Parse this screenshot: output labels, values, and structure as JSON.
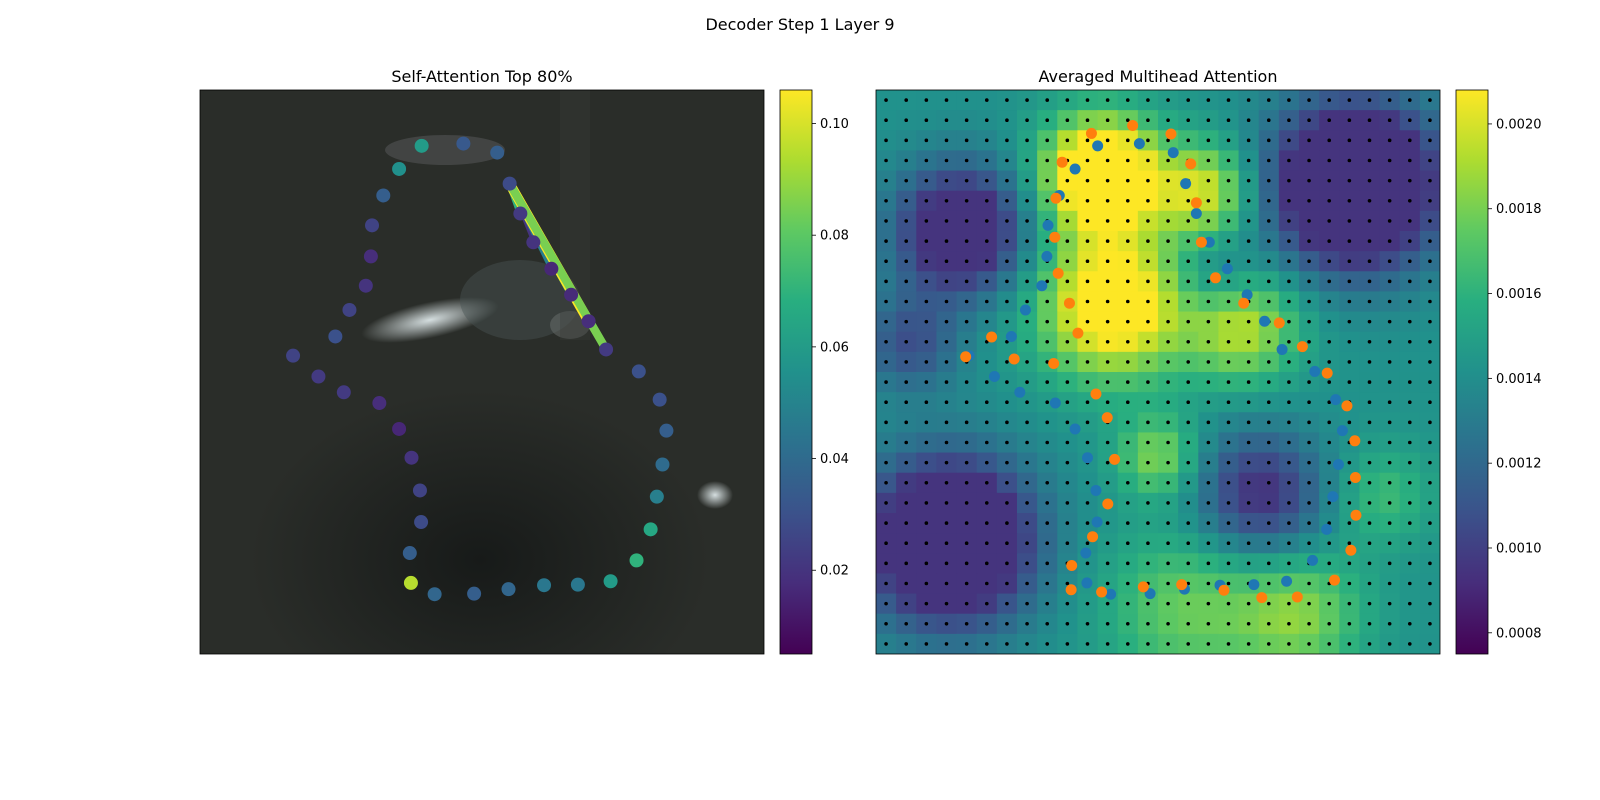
{
  "figure_title": "Decoder Step 1 Layer 9",
  "chart_data": [
    {
      "type": "scatter",
      "title": "Self-Attention Top 80%",
      "xlim": [
        0,
        1
      ],
      "ylim": [
        1,
        0
      ],
      "colormap": "viridis",
      "colorbar": {
        "range": [
          0.005,
          0.106
        ],
        "ticks": [
          0.02,
          0.04,
          0.06,
          0.08,
          0.1
        ],
        "tick_labels": [
          "0.02",
          "0.04",
          "0.06",
          "0.08",
          "0.10"
        ]
      },
      "query_point": 29,
      "attention_lines": [
        {
          "to": 27,
          "weight": 0.02
        },
        {
          "to": 28,
          "weight": 0.07
        },
        {
          "to": 26,
          "weight": 0.048
        },
        {
          "to": 25,
          "weight": 0.068
        },
        {
          "to": 24,
          "weight": 0.106
        },
        {
          "to": 23,
          "weight": 0.085
        }
      ],
      "points": [
        {
          "x": 0.165,
          "y": 0.471,
          "v": 0.025
        },
        {
          "x": 0.21,
          "y": 0.508,
          "v": 0.022
        },
        {
          "x": 0.255,
          "y": 0.536,
          "v": 0.022
        },
        {
          "x": 0.318,
          "y": 0.555,
          "v": 0.018
        },
        {
          "x": 0.353,
          "y": 0.601,
          "v": 0.016
        },
        {
          "x": 0.375,
          "y": 0.652,
          "v": 0.02
        },
        {
          "x": 0.39,
          "y": 0.71,
          "v": 0.025
        },
        {
          "x": 0.392,
          "y": 0.766,
          "v": 0.028
        },
        {
          "x": 0.372,
          "y": 0.821,
          "v": 0.035
        },
        {
          "x": 0.374,
          "y": 0.874,
          "v": 0.095
        },
        {
          "x": 0.416,
          "y": 0.894,
          "v": 0.038
        },
        {
          "x": 0.486,
          "y": 0.893,
          "v": 0.035
        },
        {
          "x": 0.547,
          "y": 0.885,
          "v": 0.038
        },
        {
          "x": 0.61,
          "y": 0.878,
          "v": 0.045
        },
        {
          "x": 0.67,
          "y": 0.877,
          "v": 0.045
        },
        {
          "x": 0.728,
          "y": 0.871,
          "v": 0.06
        },
        {
          "x": 0.774,
          "y": 0.834,
          "v": 0.07
        },
        {
          "x": 0.799,
          "y": 0.779,
          "v": 0.065
        },
        {
          "x": 0.81,
          "y": 0.721,
          "v": 0.048
        },
        {
          "x": 0.82,
          "y": 0.664,
          "v": 0.04
        },
        {
          "x": 0.827,
          "y": 0.604,
          "v": 0.035
        },
        {
          "x": 0.815,
          "y": 0.549,
          "v": 0.03
        },
        {
          "x": 0.778,
          "y": 0.499,
          "v": 0.03
        },
        {
          "x": 0.72,
          "y": 0.46,
          "v": 0.022
        },
        {
          "x": 0.689,
          "y": 0.41,
          "v": 0.018
        },
        {
          "x": 0.658,
          "y": 0.363,
          "v": 0.017
        },
        {
          "x": 0.623,
          "y": 0.317,
          "v": 0.016
        },
        {
          "x": 0.591,
          "y": 0.27,
          "v": 0.02
        },
        {
          "x": 0.568,
          "y": 0.219,
          "v": 0.022
        },
        {
          "x": 0.549,
          "y": 0.166,
          "v": 0.028
        },
        {
          "x": 0.527,
          "y": 0.111,
          "v": 0.035
        },
        {
          "x": 0.467,
          "y": 0.095,
          "v": 0.033
        },
        {
          "x": 0.393,
          "y": 0.099,
          "v": 0.06
        },
        {
          "x": 0.353,
          "y": 0.14,
          "v": 0.055
        },
        {
          "x": 0.325,
          "y": 0.187,
          "v": 0.035
        },
        {
          "x": 0.305,
          "y": 0.24,
          "v": 0.025
        },
        {
          "x": 0.303,
          "y": 0.295,
          "v": 0.018
        },
        {
          "x": 0.294,
          "y": 0.347,
          "v": 0.02
        },
        {
          "x": 0.265,
          "y": 0.39,
          "v": 0.025
        },
        {
          "x": 0.24,
          "y": 0.437,
          "v": 0.03
        }
      ]
    },
    {
      "type": "heatmap",
      "title": "Averaged Multihead Attention",
      "colormap": "viridis",
      "colorbar": {
        "range": [
          0.00075,
          0.00208
        ],
        "ticks": [
          0.0008,
          0.001,
          0.0012,
          0.0014,
          0.0016,
          0.0018,
          0.002
        ],
        "tick_labels": [
          "0.0008",
          "0.0010",
          "0.0012",
          "0.0014",
          "0.0016",
          "0.0018",
          "0.0020"
        ]
      },
      "grid_size": 28,
      "grid_dots": true,
      "series": [
        {
          "color": "#1f77b4",
          "points": [
            {
              "x": 0.165,
              "y": 0.471
            },
            {
              "x": 0.21,
              "y": 0.508
            },
            {
              "x": 0.255,
              "y": 0.536
            },
            {
              "x": 0.318,
              "y": 0.555
            },
            {
              "x": 0.353,
              "y": 0.601
            },
            {
              "x": 0.375,
              "y": 0.652
            },
            {
              "x": 0.39,
              "y": 0.71
            },
            {
              "x": 0.392,
              "y": 0.766
            },
            {
              "x": 0.372,
              "y": 0.821
            },
            {
              "x": 0.374,
              "y": 0.874
            },
            {
              "x": 0.416,
              "y": 0.894
            },
            {
              "x": 0.486,
              "y": 0.893
            },
            {
              "x": 0.547,
              "y": 0.885
            },
            {
              "x": 0.61,
              "y": 0.878
            },
            {
              "x": 0.67,
              "y": 0.877
            },
            {
              "x": 0.728,
              "y": 0.871
            },
            {
              "x": 0.774,
              "y": 0.834
            },
            {
              "x": 0.799,
              "y": 0.779
            },
            {
              "x": 0.81,
              "y": 0.721
            },
            {
              "x": 0.82,
              "y": 0.664
            },
            {
              "x": 0.827,
              "y": 0.604
            },
            {
              "x": 0.815,
              "y": 0.549
            },
            {
              "x": 0.778,
              "y": 0.499
            },
            {
              "x": 0.72,
              "y": 0.46
            },
            {
              "x": 0.689,
              "y": 0.41
            },
            {
              "x": 0.658,
              "y": 0.363
            },
            {
              "x": 0.623,
              "y": 0.317
            },
            {
              "x": 0.591,
              "y": 0.27
            },
            {
              "x": 0.568,
              "y": 0.219
            },
            {
              "x": 0.549,
              "y": 0.166
            },
            {
              "x": 0.527,
              "y": 0.111
            },
            {
              "x": 0.467,
              "y": 0.095
            },
            {
              "x": 0.393,
              "y": 0.099
            },
            {
              "x": 0.353,
              "y": 0.14
            },
            {
              "x": 0.325,
              "y": 0.187
            },
            {
              "x": 0.305,
              "y": 0.24
            },
            {
              "x": 0.303,
              "y": 0.295
            },
            {
              "x": 0.294,
              "y": 0.347
            },
            {
              "x": 0.265,
              "y": 0.39
            },
            {
              "x": 0.24,
              "y": 0.437
            }
          ]
        },
        {
          "color": "#ff7f0e",
          "points": [
            {
              "x": 0.159,
              "y": 0.473
            },
            {
              "x": 0.205,
              "y": 0.438
            },
            {
              "x": 0.245,
              "y": 0.477
            },
            {
              "x": 0.315,
              "y": 0.485
            },
            {
              "x": 0.39,
              "y": 0.539
            },
            {
              "x": 0.41,
              "y": 0.581
            },
            {
              "x": 0.423,
              "y": 0.655
            },
            {
              "x": 0.411,
              "y": 0.734
            },
            {
              "x": 0.384,
              "y": 0.792
            },
            {
              "x": 0.347,
              "y": 0.843
            },
            {
              "x": 0.346,
              "y": 0.886
            },
            {
              "x": 0.4,
              "y": 0.89
            },
            {
              "x": 0.474,
              "y": 0.881
            },
            {
              "x": 0.542,
              "y": 0.877
            },
            {
              "x": 0.617,
              "y": 0.887
            },
            {
              "x": 0.684,
              "y": 0.9
            },
            {
              "x": 0.747,
              "y": 0.899
            },
            {
              "x": 0.813,
              "y": 0.869
            },
            {
              "x": 0.842,
              "y": 0.816
            },
            {
              "x": 0.851,
              "y": 0.754
            },
            {
              "x": 0.85,
              "y": 0.687
            },
            {
              "x": 0.849,
              "y": 0.622
            },
            {
              "x": 0.835,
              "y": 0.56
            },
            {
              "x": 0.8,
              "y": 0.502
            },
            {
              "x": 0.756,
              "y": 0.455
            },
            {
              "x": 0.715,
              "y": 0.413
            },
            {
              "x": 0.652,
              "y": 0.378
            },
            {
              "x": 0.602,
              "y": 0.333
            },
            {
              "x": 0.577,
              "y": 0.27
            },
            {
              "x": 0.568,
              "y": 0.2
            },
            {
              "x": 0.558,
              "y": 0.131
            },
            {
              "x": 0.523,
              "y": 0.078
            },
            {
              "x": 0.455,
              "y": 0.063
            },
            {
              "x": 0.382,
              "y": 0.077
            },
            {
              "x": 0.33,
              "y": 0.128
            },
            {
              "x": 0.319,
              "y": 0.192
            },
            {
              "x": 0.317,
              "y": 0.261
            },
            {
              "x": 0.323,
              "y": 0.325
            },
            {
              "x": 0.343,
              "y": 0.378
            },
            {
              "x": 0.358,
              "y": 0.431
            }
          ]
        }
      ],
      "blobs": [
        {
          "x": 0.4,
          "y": 0.15,
          "s": 0.07,
          "a": 0.95
        },
        {
          "x": 0.42,
          "y": 0.38,
          "s": 0.09,
          "a": 0.75
        },
        {
          "x": 0.58,
          "y": 0.18,
          "s": 0.06,
          "a": 0.5
        },
        {
          "x": 0.65,
          "y": 0.42,
          "s": 0.07,
          "a": 0.45
        },
        {
          "x": 0.5,
          "y": 0.65,
          "s": 0.05,
          "a": 0.35
        },
        {
          "x": 0.55,
          "y": 0.92,
          "s": 0.1,
          "a": 0.3
        },
        {
          "x": 0.75,
          "y": 0.93,
          "s": 0.08,
          "a": 0.35
        },
        {
          "x": 0.9,
          "y": 0.72,
          "s": 0.06,
          "a": 0.2
        },
        {
          "x": 0.15,
          "y": 0.25,
          "s": 0.08,
          "a": -0.65
        },
        {
          "x": 0.13,
          "y": 0.8,
          "s": 0.1,
          "a": -0.9
        },
        {
          "x": 0.85,
          "y": 0.17,
          "s": 0.1,
          "a": -0.95
        },
        {
          "x": 0.68,
          "y": 0.72,
          "s": 0.08,
          "a": -0.45
        },
        {
          "x": 0.06,
          "y": 0.45,
          "s": 0.06,
          "a": -0.3
        },
        {
          "x": 0.6,
          "y": 0.33,
          "s": 0.05,
          "a": -0.2
        }
      ]
    }
  ]
}
